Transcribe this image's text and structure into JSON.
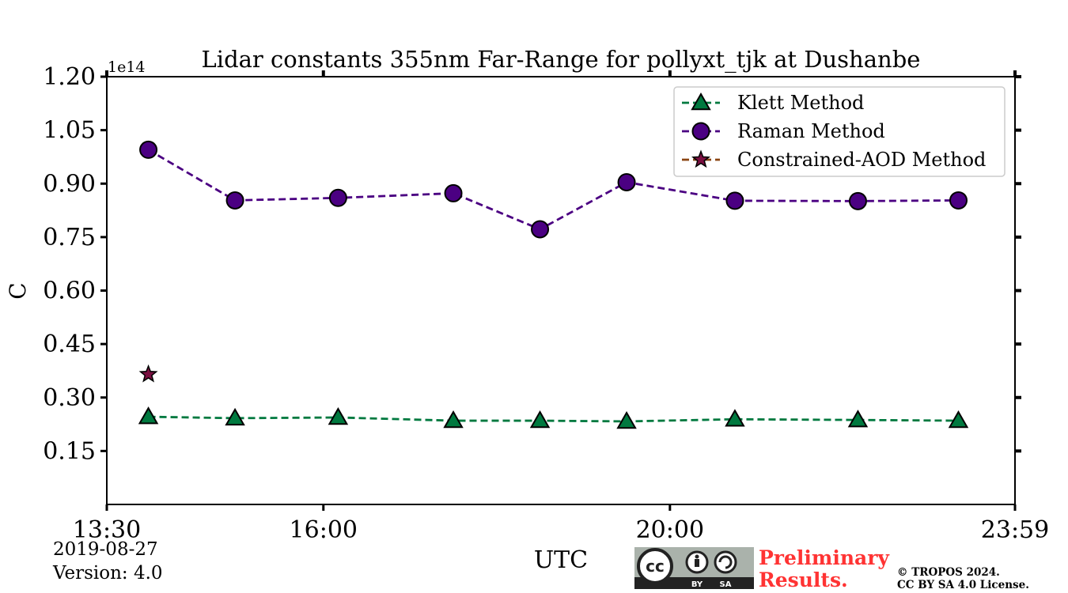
{
  "chart_data": {
    "type": "line",
    "title": "Lidar constants 355nm Far-Range for pollyxt_tjk at Dushanbe",
    "xlabel": "UTC",
    "ylabel": "C",
    "y_multiplier_label": "1e14",
    "ylim": [
      0,
      1.2
    ],
    "xlim": [
      "13:30",
      "23:59"
    ],
    "x_tick_labels": [
      "13:30",
      "16:00",
      "20:00",
      "23:59"
    ],
    "x_tick_values": [
      13.5,
      16.0,
      20.0,
      23.983
    ],
    "y_tick_labels": [
      "0.15",
      "0.30",
      "0.45",
      "0.60",
      "0.75",
      "0.90",
      "1.05",
      "1.20"
    ],
    "y_tick_values": [
      0.15,
      0.3,
      0.45,
      0.6,
      0.75,
      0.9,
      1.05,
      1.2
    ],
    "legend_position": "top-right",
    "series": [
      {
        "name": "Klett Method",
        "color": "#00793f",
        "marker": "triangle",
        "x": [
          13.98,
          14.98,
          16.17,
          17.5,
          18.5,
          19.5,
          20.75,
          22.17,
          23.33
        ],
        "values": [
          0.246,
          0.242,
          0.244,
          0.235,
          0.235,
          0.233,
          0.239,
          0.237,
          0.235
        ]
      },
      {
        "name": "Raman Method",
        "color": "#4b0082",
        "marker": "circle",
        "x": [
          13.98,
          14.98,
          16.17,
          17.5,
          18.5,
          19.5,
          20.75,
          22.17,
          23.33
        ],
        "values": [
          0.995,
          0.853,
          0.86,
          0.873,
          0.772,
          0.904,
          0.852,
          0.851,
          0.853
        ]
      },
      {
        "name": "Constrained-AOD Method",
        "color": "#7a0f40",
        "line_color": "#8b4513",
        "marker": "star",
        "x": [
          13.98
        ],
        "values": [
          0.365
        ]
      }
    ]
  },
  "footer": {
    "date": "2019-08-27",
    "version": "Version: 4.0",
    "preliminary": "Preliminary Results.",
    "copyright_line1": "© TROPOS 2024.",
    "copyright_line2": "CC BY SA 4.0 License.",
    "badge_by": "BY",
    "badge_sa": "SA"
  }
}
